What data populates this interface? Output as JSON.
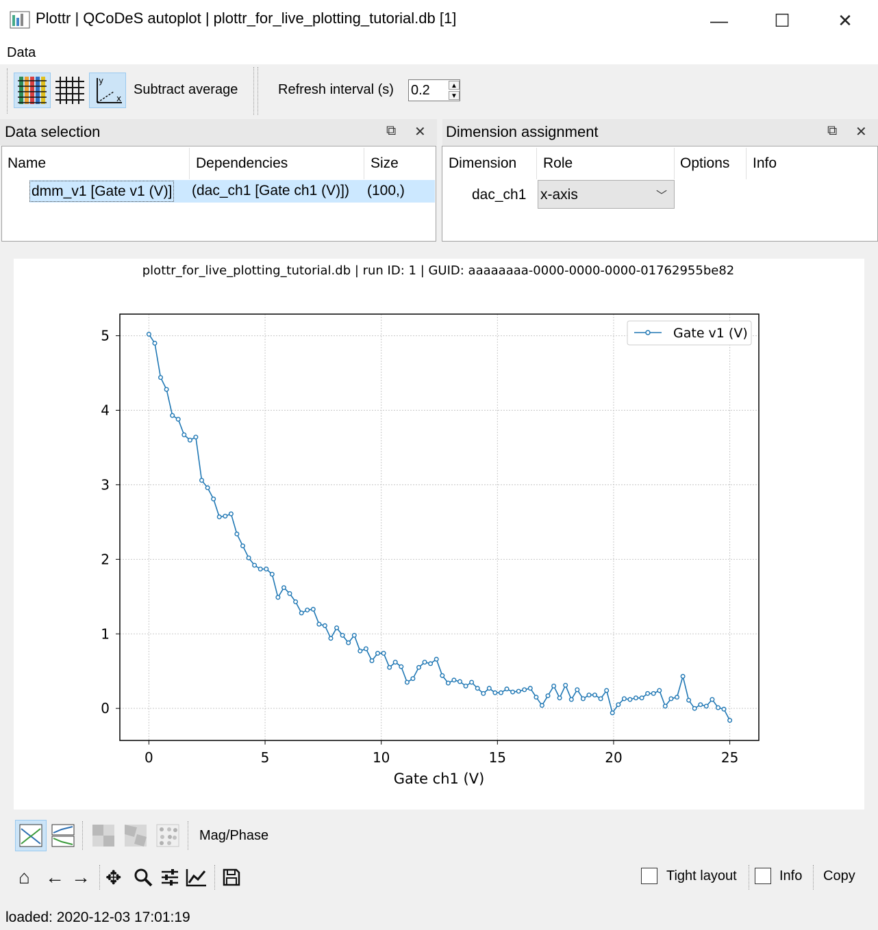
{
  "window": {
    "title": "Plottr | QCoDeS autoplot | plottr_for_live_plotting_tutorial.db [1]",
    "minimize_glyph": "—",
    "maximize_glyph": "☐",
    "close_glyph": "✕"
  },
  "menu": {
    "items": [
      "Data"
    ]
  },
  "toolbar": {
    "subtract_average": "Subtract average",
    "refresh_label": "Refresh interval (s)",
    "refresh_value": "0.2",
    "icons": [
      "color-grid-icon",
      "grid-icon",
      "xy-axes-icon"
    ]
  },
  "data_selection": {
    "title": "Data selection",
    "columns": [
      "Name",
      "Dependencies",
      "Size"
    ],
    "rows": [
      {
        "name": "dmm_v1 [Gate v1 (V)]",
        "dependencies": "(dac_ch1 [Gate ch1 (V)])",
        "size": "(100,)"
      }
    ]
  },
  "dimension_assignment": {
    "title": "Dimension assignment",
    "columns": [
      "Dimension",
      "Role",
      "Options",
      "Info"
    ],
    "rows": [
      {
        "dimension": "dac_ch1",
        "role": "x-axis"
      }
    ]
  },
  "plot": {
    "header": "plottr_for_live_plotting_tutorial.db | run ID: 1 | GUID: aaaaaaaa-0000-0000-0000-01762955be82"
  },
  "chart_data": {
    "type": "line",
    "title": "",
    "xlabel": "Gate ch1 (V)",
    "ylabel": "",
    "xlim": [
      -1.25,
      26.25
    ],
    "ylim": [
      -0.43,
      5.29
    ],
    "xticks": [
      0,
      5,
      10,
      15,
      20,
      25
    ],
    "yticks": [
      0,
      1,
      2,
      3,
      4,
      5
    ],
    "grid": true,
    "legend_position": "top-right",
    "series_color": "#1f77b4",
    "series": [
      {
        "name": "Gate v1 (V)",
        "x_start": 0,
        "x_end": 25,
        "y": [
          5.02,
          4.9,
          4.44,
          4.28,
          3.93,
          3.88,
          3.67,
          3.6,
          3.64,
          3.06,
          2.96,
          2.81,
          2.57,
          2.58,
          2.61,
          2.34,
          2.18,
          2.02,
          1.92,
          1.87,
          1.87,
          1.8,
          1.49,
          1.62,
          1.54,
          1.43,
          1.28,
          1.32,
          1.33,
          1.13,
          1.11,
          0.94,
          1.08,
          0.98,
          0.88,
          0.98,
          0.77,
          0.8,
          0.64,
          0.74,
          0.74,
          0.55,
          0.62,
          0.56,
          0.35,
          0.4,
          0.55,
          0.62,
          0.6,
          0.66,
          0.44,
          0.34,
          0.38,
          0.36,
          0.3,
          0.35,
          0.27,
          0.2,
          0.27,
          0.21,
          0.21,
          0.26,
          0.22,
          0.23,
          0.25,
          0.27,
          0.15,
          0.04,
          0.17,
          0.3,
          0.14,
          0.31,
          0.12,
          0.25,
          0.13,
          0.18,
          0.18,
          0.13,
          0.24,
          -0.06,
          0.05,
          0.13,
          0.12,
          0.14,
          0.14,
          0.2,
          0.2,
          0.24,
          0.03,
          0.13,
          0.15,
          0.43,
          0.11,
          0.0,
          0.05,
          0.03,
          0.12,
          0.01,
          -0.01,
          -0.16
        ]
      }
    ]
  },
  "plot_toolbar": {
    "magphase": "Mag/Phase",
    "tight_layout": "Tight layout",
    "info": "Info",
    "copy": "Copy"
  },
  "status": {
    "text": "loaded: 2020-12-03 17:01:19"
  }
}
